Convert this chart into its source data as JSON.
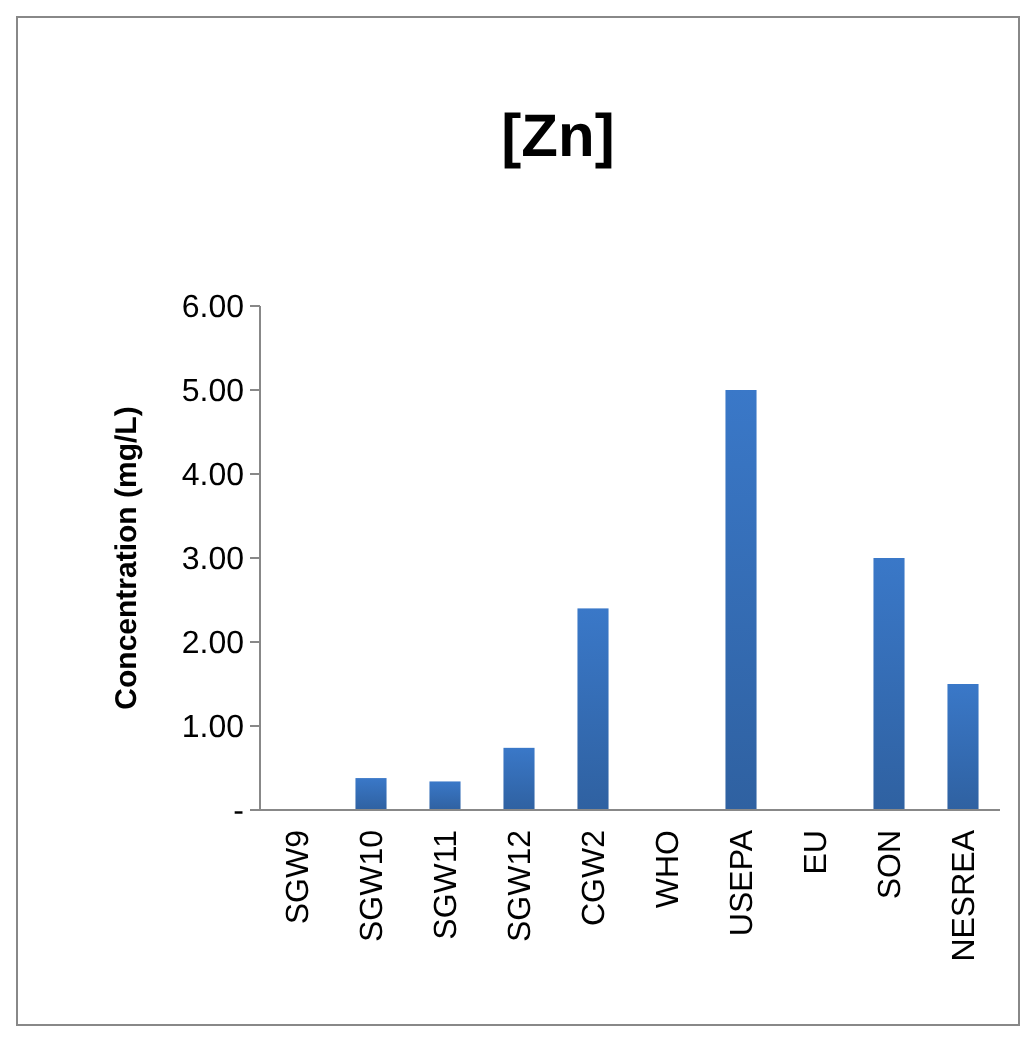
{
  "chart_data": {
    "type": "bar",
    "title": "[Zn]",
    "ylabel": "Concentration (mg/L)",
    "categories": [
      "SGW9",
      "SGW10",
      "SGW11",
      "SGW12",
      "CGW2",
      "WHO",
      "USEPA",
      "EU",
      "SON",
      "NESREA"
    ],
    "values": [
      null,
      0.38,
      0.34,
      0.74,
      2.4,
      null,
      5.0,
      null,
      3.0,
      1.5
    ],
    "color": "#3a78c8",
    "ylim": [
      0,
      6
    ],
    "yticks": [
      {
        "value": 0,
        "label": "-"
      },
      {
        "value": 1,
        "label": "1.00"
      },
      {
        "value": 2,
        "label": "2.00"
      },
      {
        "value": 3,
        "label": "3.00"
      },
      {
        "value": 4,
        "label": "4.00"
      },
      {
        "value": 5,
        "label": "5.00"
      },
      {
        "value": 6,
        "label": "6.00"
      }
    ],
    "grid": false
  }
}
